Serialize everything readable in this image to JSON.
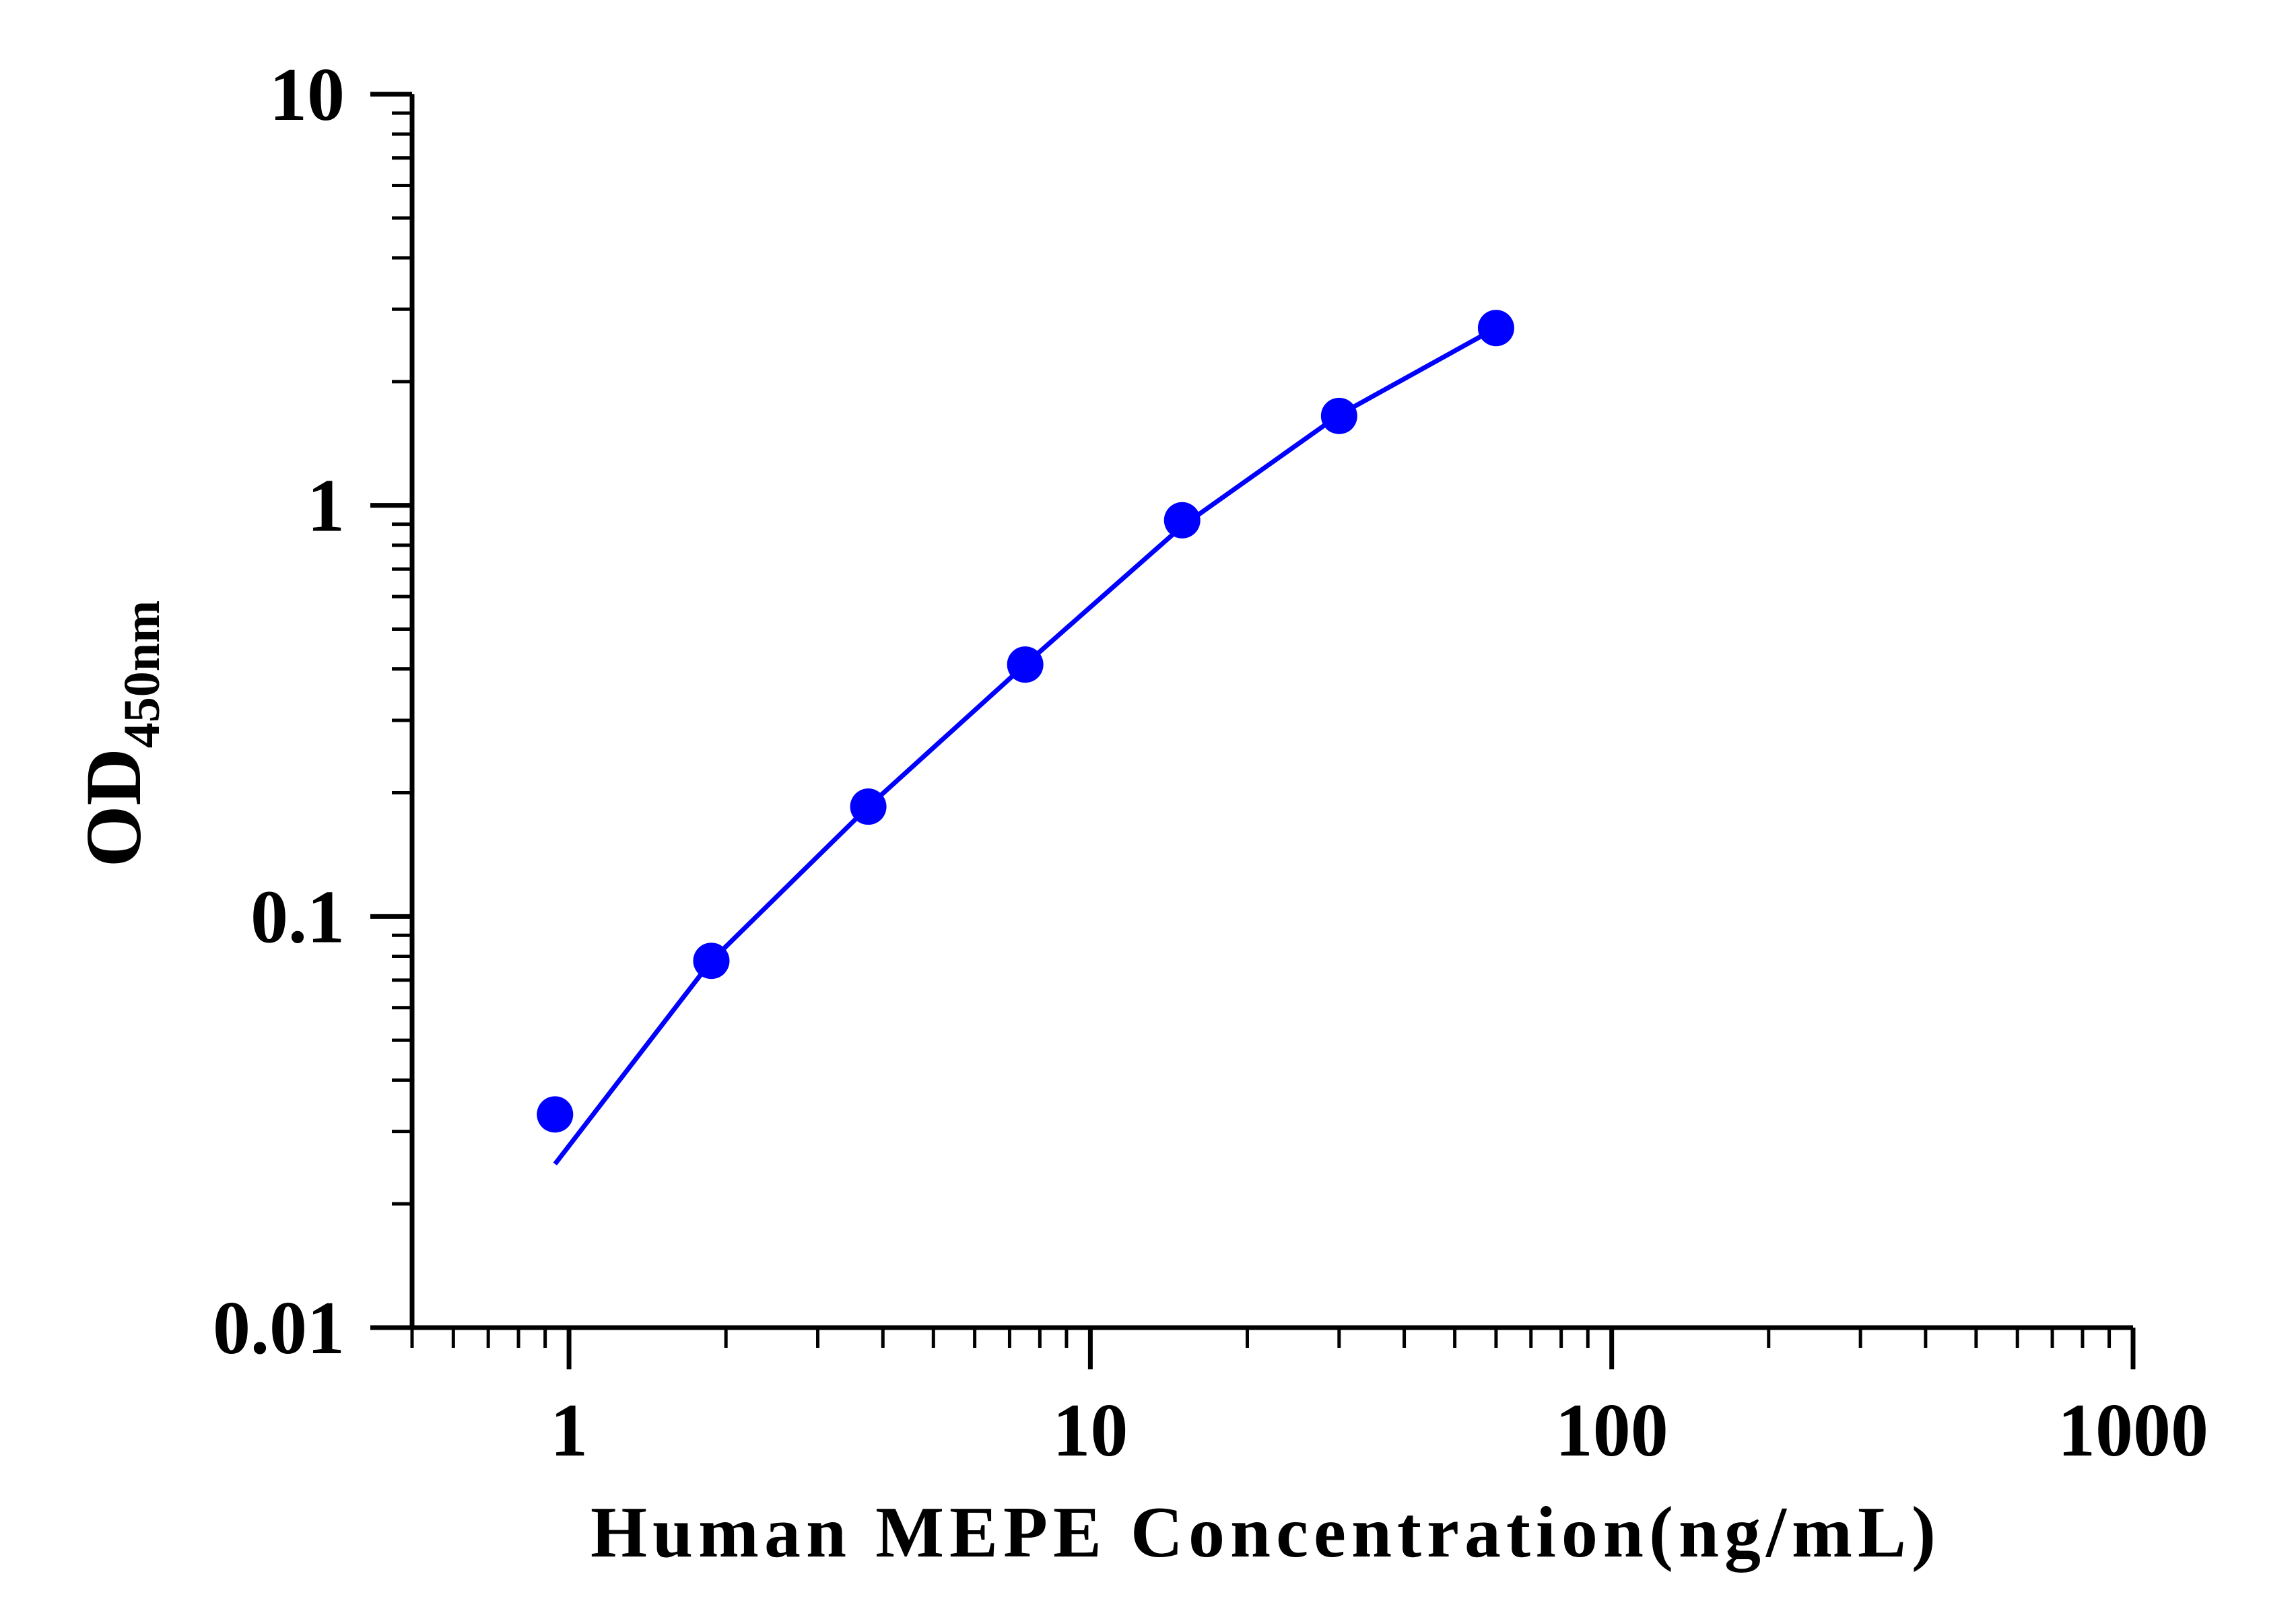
{
  "colors": {
    "series": "#0000FF",
    "axis": "#000000",
    "background": "#FFFFFF"
  },
  "chart_data": {
    "type": "scatter",
    "title": "",
    "xlabel": "Human MEPE Concentration(ng/mL)",
    "ylabel": {
      "main": "OD",
      "subscript": "450nm"
    },
    "x_scale": "log",
    "y_scale": "log",
    "xlim": [
      0.5,
      1000
    ],
    "ylim": [
      0.01,
      10
    ],
    "x_tick_labels": [
      "1",
      "10",
      "100",
      "1000"
    ],
    "x_tick_values": [
      1,
      10,
      100,
      1000
    ],
    "y_tick_labels": [
      "0.01",
      "0.1",
      "1",
      "10"
    ],
    "y_tick_values": [
      0.01,
      0.1,
      1,
      10
    ],
    "grid": false,
    "legend": "none",
    "series": [
      {
        "points": {
          "x": [
            0.94,
            1.875,
            3.75,
            7.5,
            15,
            30,
            60
          ],
          "y": [
            0.033,
            0.078,
            0.185,
            0.41,
            0.92,
            1.65,
            2.7
          ]
        },
        "fit_curve": {
          "x": [
            0.94,
            1.875,
            3.75,
            7.5,
            15,
            30,
            60
          ],
          "y": [
            0.025,
            0.078,
            0.185,
            0.41,
            0.89,
            1.66,
            2.7
          ]
        }
      }
    ]
  }
}
